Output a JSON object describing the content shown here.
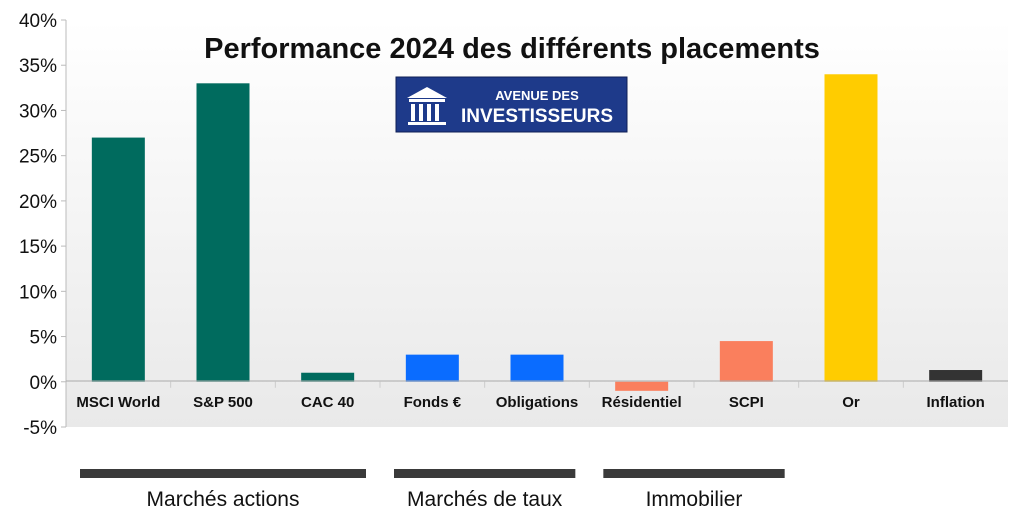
{
  "chart_data": {
    "type": "bar",
    "title": "Performance 2024 des différents placements",
    "categories": [
      "MSCI World",
      "S&P 500",
      "CAC 40",
      "Fonds €",
      "Obligations",
      "Résidentiel",
      "SCPI",
      "Or",
      "Inflation"
    ],
    "values": [
      27,
      33,
      1,
      3,
      3,
      -1,
      4.5,
      34,
      1.3
    ],
    "colors": [
      "#006b5e",
      "#006b5e",
      "#006b5e",
      "#0a6cff",
      "#0a6cff",
      "#fa7f5d",
      "#fa7f5d",
      "#ffcc00",
      "#333333"
    ],
    "yticks": [
      "40%",
      "35%",
      "30%",
      "25%",
      "20%",
      "15%",
      "10%",
      "5%",
      "0%",
      "-5%"
    ],
    "ylim": [
      -5,
      40
    ],
    "unit": "%",
    "grid": false,
    "groups": [
      {
        "label": "Marchés actions",
        "categories": [
          "MSCI World",
          "S&P 500",
          "CAC 40"
        ]
      },
      {
        "label": "Marchés de taux",
        "categories": [
          "Fonds €",
          "Obligations"
        ]
      },
      {
        "label": "Immobilier",
        "categories": [
          "Résidentiel",
          "SCPI"
        ]
      }
    ]
  },
  "logo": {
    "line1": "AVENUE DES",
    "line2": "INVESTISSEURS",
    "background": "#1e3a8a",
    "icon": "bank-columns-icon"
  }
}
